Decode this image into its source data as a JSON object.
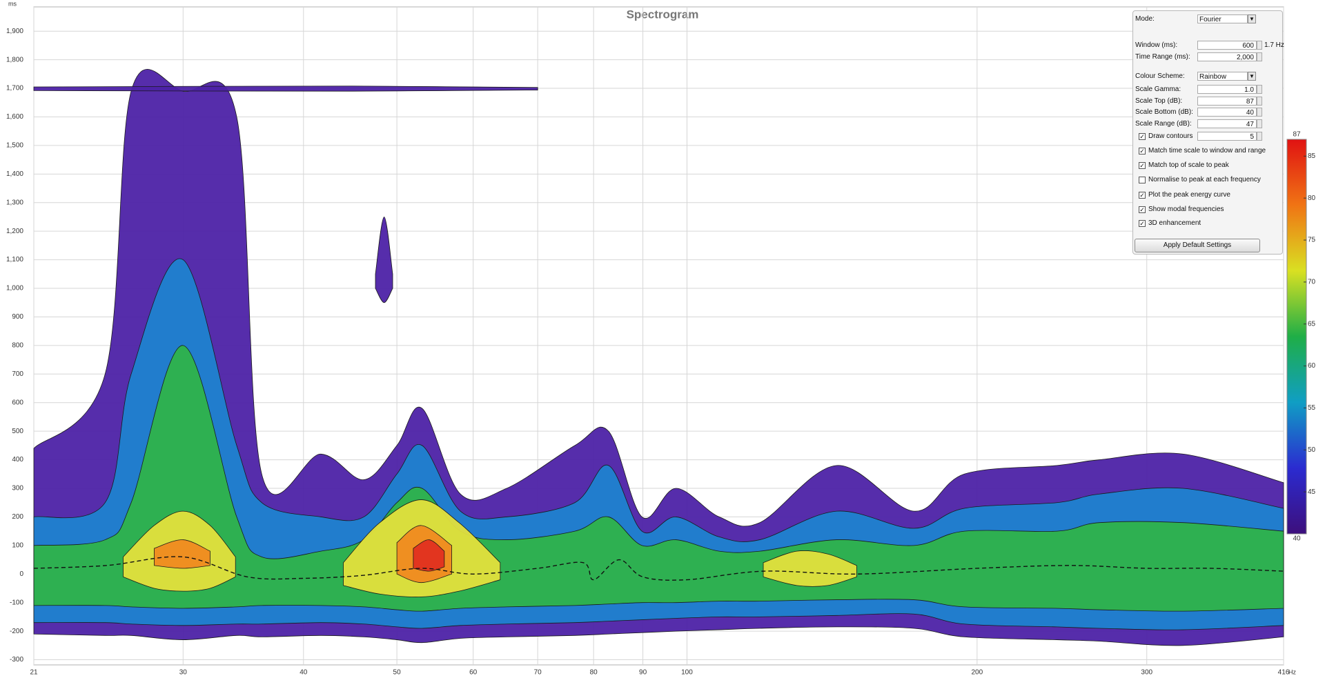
{
  "chart_data": {
    "type": "spectrogram",
    "title": "Spectrogram",
    "y_unit": "ms",
    "x_unit": "Hz",
    "log_x": true,
    "grid": true,
    "xlim": [
      21,
      416
    ],
    "xticks": [
      21,
      30,
      40,
      50,
      60,
      70,
      80,
      90,
      100,
      200,
      300,
      416
    ],
    "ylim": [
      -318,
      1985
    ],
    "yticks": [
      -300,
      -200,
      -100,
      0,
      100,
      200,
      300,
      400,
      500,
      600,
      700,
      800,
      900,
      {
        "value": 1000,
        "label": "1,000"
      },
      {
        "value": 1100,
        "label": "1,100"
      },
      {
        "value": 1200,
        "label": "1,200"
      },
      {
        "value": 1300,
        "label": "1,300"
      },
      {
        "value": 1400,
        "label": "1,400"
      },
      {
        "value": 1500,
        "label": "1,500"
      },
      {
        "value": 1600,
        "label": "1,600"
      },
      {
        "value": 1700,
        "label": "1,700"
      },
      {
        "value": 1800,
        "label": "1,800"
      },
      {
        "value": 1900,
        "label": "1,900"
      }
    ],
    "zlim": [
      40,
      87
    ],
    "zticks": [
      45,
      50,
      55,
      60,
      65,
      70,
      75,
      80,
      85
    ],
    "colorbar_colors": [
      "#3d0f7c",
      "#2b2bd0",
      "#109ec4",
      "#1fae47",
      "#d9e022",
      "#f07414",
      "#e01212"
    ],
    "areas": [
      {
        "level": 45,
        "color": "#4d22a6",
        "x": [
          21,
          24.9,
          26.5,
          30,
          34.1,
          36.2,
          41.7,
          46.2,
          50,
          53.1,
          58.2,
          65,
          76.5,
          82.9,
          89.8,
          97.4,
          108,
          119,
          143,
          172,
          194,
          242,
          268,
          327,
          416
        ],
        "top": [
          440,
          700,
          1690,
          1690,
          1600,
          350,
          420,
          330,
          450,
          580,
          280,
          300,
          450,
          500,
          200,
          300,
          200,
          180,
          380,
          220,
          350,
          380,
          400,
          420,
          320
        ],
        "bottom": [
          -210,
          -215,
          -215,
          -230,
          -215,
          -220,
          -215,
          -220,
          -230,
          -240,
          -225,
          -220,
          -215,
          -210,
          -205,
          -200,
          -195,
          -190,
          -185,
          -190,
          -220,
          -230,
          -235,
          -250,
          -220
        ]
      },
      {
        "level": 45,
        "color": "#4d22a6",
        "x": [
          47.5,
          48.5,
          49.5
        ],
        "top": [
          1050,
          1250,
          1050
        ],
        "bottom": [
          1000,
          950,
          1000
        ]
      },
      {
        "level": 45,
        "color": "#4d22a6",
        "x": [
          21,
          45,
          70
        ],
        "top": [
          1705,
          1708,
          1703
        ],
        "bottom": [
          1692,
          1690,
          1694
        ]
      },
      {
        "level": 55,
        "color": "#1f82cf",
        "x": [
          21,
          24.9,
          26.5,
          30,
          34.1,
          36.2,
          41.7,
          46.2,
          50,
          53.1,
          58.2,
          65,
          76.5,
          82.9,
          89.8,
          97.4,
          108,
          119,
          143,
          172,
          194,
          242,
          268,
          327,
          416
        ],
        "top": [
          200,
          250,
          700,
          1100,
          450,
          250,
          200,
          200,
          350,
          450,
          220,
          200,
          250,
          380,
          150,
          200,
          130,
          120,
          220,
          160,
          230,
          250,
          280,
          300,
          230
        ],
        "bottom": [
          -170,
          -170,
          -175,
          -180,
          -175,
          -175,
          -170,
          -175,
          -185,
          -190,
          -180,
          -175,
          -170,
          -165,
          -160,
          -155,
          -150,
          -150,
          -145,
          -140,
          -175,
          -185,
          -190,
          -195,
          -180
        ]
      },
      {
        "level": 65,
        "color": "#2fb34a",
        "x": [
          21,
          24.9,
          26.5,
          30,
          34.1,
          36.2,
          41.7,
          46.2,
          50,
          53.1,
          58.2,
          65,
          76.5,
          82.9,
          89.8,
          97.4,
          108,
          119,
          143,
          172,
          194,
          242,
          268,
          327,
          416
        ],
        "top": [
          100,
          120,
          250,
          800,
          200,
          60,
          80,
          120,
          250,
          300,
          150,
          120,
          150,
          200,
          100,
          120,
          80,
          80,
          120,
          100,
          150,
          150,
          180,
          180,
          150
        ],
        "bottom": [
          -110,
          -110,
          -115,
          -120,
          -115,
          -110,
          -110,
          -115,
          -125,
          -130,
          -120,
          -115,
          -110,
          -105,
          -100,
          -100,
          -95,
          -95,
          -90,
          -90,
          -115,
          -120,
          -125,
          -130,
          -120
        ]
      },
      {
        "level": 75,
        "color": "#e3e03c",
        "x": [
          26,
          28,
          30,
          32,
          34
        ],
        "top": [
          60,
          170,
          220,
          170,
          60
        ],
        "bottom": [
          -10,
          -50,
          -60,
          -50,
          -10
        ]
      },
      {
        "level": 75,
        "color": "#e3e03c",
        "x": [
          44,
          48,
          53,
          58,
          64
        ],
        "top": [
          40,
          180,
          260,
          180,
          40
        ],
        "bottom": [
          -40,
          -70,
          -80,
          -60,
          -20
        ]
      },
      {
        "level": 75,
        "color": "#e3e03c",
        "x": [
          120,
          130,
          140,
          150
        ],
        "top": [
          40,
          80,
          70,
          30
        ],
        "bottom": [
          -10,
          -40,
          -40,
          -10
        ]
      },
      {
        "level": 82,
        "color": "#f08a20",
        "x": [
          28,
          30,
          32
        ],
        "top": [
          90,
          120,
          80
        ],
        "bottom": [
          30,
          20,
          30
        ]
      },
      {
        "level": 82,
        "color": "#f08a20",
        "x": [
          50,
          53,
          57
        ],
        "top": [
          110,
          170,
          100
        ],
        "bottom": [
          0,
          -30,
          0
        ]
      },
      {
        "level": 86,
        "color": "#e03020",
        "x": [
          52,
          54,
          56
        ],
        "top": [
          90,
          120,
          80
        ],
        "bottom": [
          20,
          10,
          25
        ]
      }
    ],
    "peak_curve": {
      "x": [
        21,
        25,
        30,
        35,
        40,
        46,
        53,
        60,
        70,
        78,
        80,
        85,
        90,
        100,
        120,
        150,
        200,
        250,
        300,
        350,
        416
      ],
      "values": [
        20,
        30,
        60,
        -10,
        -15,
        -5,
        20,
        0,
        20,
        40,
        -20,
        50,
        -10,
        -20,
        10,
        0,
        20,
        30,
        20,
        20,
        10
      ]
    }
  },
  "settings": {
    "fields": [
      {
        "label": "Mode:",
        "value": "Fourier",
        "dropdown": true
      },
      {
        "label": "Window (ms):",
        "value": "600",
        "note": "1.7 Hz"
      },
      {
        "label": "Time Range (ms):",
        "value": "2,000"
      },
      {
        "label": "Colour Scheme:",
        "value": "Rainbow",
        "dropdown": true
      },
      {
        "label": "Scale Gamma:",
        "value": "1.0"
      },
      {
        "label": "Scale Top (dB):",
        "value": "87"
      },
      {
        "label": "Scale Bottom (dB):",
        "value": "40"
      },
      {
        "label": "Scale Range (dB):",
        "value": "47"
      },
      {
        "label": "Draw contours",
        "value": "5",
        "checked": true
      }
    ],
    "checks": [
      {
        "label": "Match time scale to window and range",
        "checked": true
      },
      {
        "label": "Match top of scale to peak",
        "checked": true
      },
      {
        "label": "Normalise to peak at each frequency",
        "checked": false
      },
      {
        "label": "Plot the peak energy curve",
        "checked": true
      },
      {
        "label": "Show modal frequencies",
        "checked": true
      },
      {
        "label": "3D enhancement",
        "checked": true
      }
    ],
    "button": "Apply Default Settings"
  }
}
